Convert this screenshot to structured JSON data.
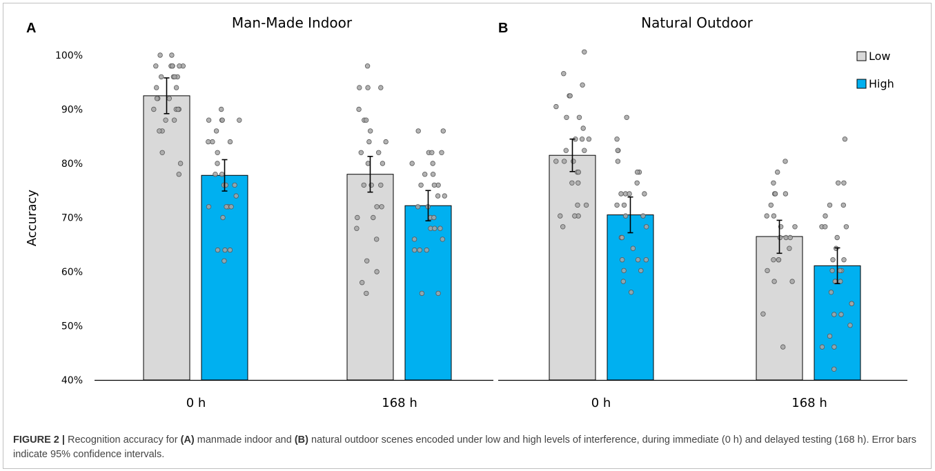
{
  "chart_data": [
    {
      "type": "bar",
      "panel": "A",
      "title": "Man-Made Indoor",
      "ylabel": "Accuracy",
      "ylim": [
        40,
        100
      ],
      "yticks": [
        "40%",
        "50%",
        "60%",
        "70%",
        "80%",
        "90%",
        "100%"
      ],
      "categories": [
        "0 h",
        "168 h"
      ],
      "series": [
        {
          "name": "Low",
          "color": "#d9d9d9",
          "values": [
            92.5,
            78.0
          ],
          "ci_low": [
            89.2,
            74.7
          ],
          "ci_high": [
            95.8,
            81.3
          ],
          "points": [
            [
              100,
              100,
              98,
              98,
              98,
              98,
              98,
              98,
              96,
              96,
              96,
              96,
              94,
              94,
              92,
              92,
              92,
              90,
              90,
              90,
              90,
              88,
              88,
              86,
              86,
              82,
              80,
              78
            ],
            [
              98,
              94,
              94,
              94,
              90,
              88,
              88,
              86,
              84,
              84,
              82,
              82,
              80,
              80,
              76,
              76,
              76,
              72,
              72,
              70,
              70,
              68,
              66,
              62,
              60,
              58,
              56
            ]
          ]
        },
        {
          "name": "High",
          "color": "#00b0f0",
          "values": [
            77.8,
            72.2
          ],
          "ci_low": [
            74.9,
            69.4
          ],
          "ci_high": [
            80.7,
            75.0
          ],
          "points": [
            [
              90,
              88,
              88,
              88,
              88,
              86,
              84,
              84,
              84,
              82,
              80,
              78,
              78,
              76,
              76,
              76,
              74,
              72,
              72,
              72,
              72,
              70,
              64,
              64,
              64,
              62
            ],
            [
              86,
              86,
              82,
              82,
              82,
              80,
              80,
              78,
              78,
              76,
              76,
              76,
              74,
              74,
              72,
              72,
              70,
              70,
              68,
              68,
              68,
              66,
              66,
              64,
              64,
              64,
              56,
              56
            ]
          ]
        }
      ]
    },
    {
      "type": "bar",
      "panel": "B",
      "title": "Natural Outdoor",
      "ylim": [
        40,
        100
      ],
      "categories": [
        "0 h",
        "168 h"
      ],
      "legend": [
        "Low",
        "High"
      ],
      "legend_position": "top-right",
      "series": [
        {
          "name": "Low",
          "color": "#d9d9d9",
          "values": [
            81.5,
            66.5
          ],
          "ci_low": [
            78.5,
            63.4
          ],
          "ci_high": [
            84.5,
            69.5
          ],
          "points": [
            [
              100.6,
              96.6,
              94.5,
              92.5,
              92.5,
              90.5,
              88.5,
              88.5,
              86.5,
              84.5,
              84.5,
              84.5,
              82.4,
              82.4,
              80.4,
              80.4,
              80.4,
              78.4,
              78.4,
              76.4,
              76.4,
              72.3,
              72.3,
              70.3,
              70.3,
              70.3,
              68.3
            ],
            [
              80.4,
              78.4,
              76.4,
              74.4,
              74.4,
              74.4,
              72.3,
              70.3,
              70.3,
              68.3,
              68.3,
              66.3,
              66.3,
              66.3,
              64.3,
              62.2,
              62.2,
              62.2,
              60.2,
              58.2,
              58.2,
              52.2,
              46.1
            ]
          ]
        },
        {
          "name": "High",
          "color": "#00b0f0",
          "values": [
            70.5,
            61.1
          ],
          "ci_low": [
            67.2,
            57.8
          ],
          "ci_high": [
            73.8,
            64.4
          ],
          "points": [
            [
              88.5,
              84.5,
              82.4,
              82.4,
              80.4,
              78.4,
              78.4,
              76.4,
              74.4,
              74.4,
              74.4,
              74.4,
              72.3,
              72.3,
              70.3,
              70.3,
              68.3,
              66.3,
              66.3,
              64.3,
              62.2,
              62.2,
              62.2,
              60.2,
              60.2,
              58.2,
              56.2
            ],
            [
              84.5,
              76.4,
              76.4,
              72.3,
              72.3,
              70.3,
              68.3,
              68.3,
              68.3,
              66.3,
              64.3,
              62.2,
              62.2,
              60.2,
              60.2,
              60.2,
              58.2,
              58.2,
              58.2,
              56.2,
              54.1,
              54.1,
              52.1,
              52.1,
              50.1,
              48.1,
              46.1,
              46.1,
              42.0
            ]
          ]
        }
      ]
    }
  ],
  "caption": {
    "label": "FIGURE 2 |",
    "part1": " Recognition accuracy for ",
    "a": "(A)",
    "part2": " manmade indoor and ",
    "b": "(B)",
    "part3": " natural outdoor scenes encoded under low and high levels of interference, during immediate (0 h) and delayed testing (168 h). Error bars indicate 95% confidence intervals."
  }
}
